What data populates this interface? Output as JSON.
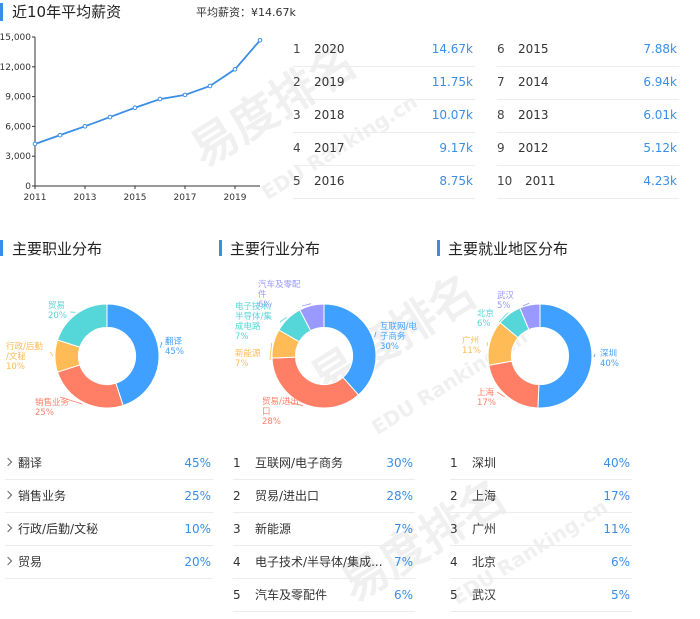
{
  "header": {
    "title": "近10年平均薪资",
    "avg_label": "平均薪资：¥14.67k"
  },
  "salary_ranks": [
    {
      "rank": "1",
      "year": "2020",
      "salary": "14.67k"
    },
    {
      "rank": "2",
      "year": "2019",
      "salary": "11.75k"
    },
    {
      "rank": "3",
      "year": "2018",
      "salary": "10.07k"
    },
    {
      "rank": "4",
      "year": "2017",
      "salary": "9.17k"
    },
    {
      "rank": "5",
      "year": "2016",
      "salary": "8.75k"
    },
    {
      "rank": "6",
      "year": "2015",
      "salary": "7.88k"
    },
    {
      "rank": "7",
      "year": "2014",
      "salary": "6.94k"
    },
    {
      "rank": "8",
      "year": "2013",
      "salary": "6.01k"
    },
    {
      "rank": "9",
      "year": "2012",
      "salary": "5.12k"
    },
    {
      "rank": "10",
      "year": "2011",
      "salary": "4.23k"
    }
  ],
  "sections": {
    "occupation": "主要职业分布",
    "industry": "主要行业分布",
    "region": "主要就业地区分布"
  },
  "occupation_list": [
    {
      "label": "翻译",
      "percent": "45%"
    },
    {
      "label": "销售业务",
      "percent": "25%"
    },
    {
      "label": "行政/后勤/文秘",
      "percent": "10%"
    },
    {
      "label": "贸易",
      "percent": "20%"
    }
  ],
  "industry_list": [
    {
      "rank": "1",
      "label": "互联网/电子商务",
      "percent": "30%"
    },
    {
      "rank": "2",
      "label": "贸易/进出口",
      "percent": "28%"
    },
    {
      "rank": "3",
      "label": "新能源",
      "percent": "7%"
    },
    {
      "rank": "4",
      "label": "电子技术/半导体/集成...",
      "percent": "7%"
    },
    {
      "rank": "5",
      "label": "汽车及零配件",
      "percent": "6%"
    }
  ],
  "region_list": [
    {
      "rank": "1",
      "label": "深圳",
      "percent": "40%"
    },
    {
      "rank": "2",
      "label": "上海",
      "percent": "17%"
    },
    {
      "rank": "3",
      "label": "广州",
      "percent": "11%"
    },
    {
      "rank": "4",
      "label": "北京",
      "percent": "6%"
    },
    {
      "rank": "5",
      "label": "武汉",
      "percent": "5%"
    }
  ],
  "watermark": {
    "brand": "易度排名",
    "sub": "EDU Ranking.cn"
  },
  "chart_data": [
    {
      "type": "line",
      "title": "近10年平均薪资",
      "x": [
        2011,
        2012,
        2013,
        2014,
        2015,
        2016,
        2017,
        2018,
        2019,
        2020
      ],
      "series": [
        {
          "values": [
            4230,
            5120,
            6010,
            6940,
            7880,
            8750,
            9170,
            10070,
            11750,
            14670
          ]
        }
      ],
      "xticks": [
        "2011",
        "2013",
        "2015",
        "2017",
        "2019"
      ],
      "yticks": [
        "0",
        "3,000",
        "6,000",
        "9,000",
        "12,000",
        "15,000"
      ],
      "ylim": [
        0,
        15000
      ],
      "xlim": [
        2011,
        2020
      ],
      "grid": false,
      "color": "#3a8ee6"
    },
    {
      "type": "pie",
      "title": "主要职业分布",
      "hole": 0.55,
      "slices": [
        {
          "label": "翻译",
          "value": 45,
          "text": "45%",
          "color": "#3fa0ff",
          "label_lines": [
            "翻译"
          ]
        },
        {
          "label": "销售业务",
          "value": 25,
          "text": "25%",
          "color": "#ff7f66",
          "label_lines": [
            "销售业务"
          ]
        },
        {
          "label": "行政/后勤/文秘",
          "value": 10,
          "text": "10%",
          "color": "#ffbb55",
          "label_lines": [
            "行政/后勤",
            "/文秘"
          ]
        },
        {
          "label": "贸易",
          "value": 20,
          "text": "20%",
          "color": "#55d6d8",
          "label_lines": [
            "贸易"
          ]
        }
      ]
    },
    {
      "type": "pie",
      "title": "主要行业分布",
      "hole": 0.55,
      "slices": [
        {
          "label": "互联网/电子商务",
          "value": 30,
          "text": "30%",
          "color": "#3fa0ff",
          "label_lines": [
            "互联网/电",
            "子商务"
          ]
        },
        {
          "label": "贸易/进出口",
          "value": 28,
          "text": "28%",
          "color": "#ff7f66",
          "label_lines": [
            "贸易/进出",
            "口"
          ]
        },
        {
          "label": "新能源",
          "value": 7,
          "text": "7%",
          "color": "#ffbb55",
          "label_lines": [
            "新能源"
          ]
        },
        {
          "label": "电子技术/半导体/集成电路",
          "value": 7,
          "text": "7%",
          "color": "#55d6d8",
          "label_lines": [
            "电子技术/",
            "半导体/集",
            "成电路"
          ]
        },
        {
          "label": "汽车及零配件",
          "value": 6,
          "text": "6%",
          "color": "#9999ff",
          "label_lines": [
            "汽车及零配",
            "件"
          ]
        }
      ]
    },
    {
      "type": "pie",
      "title": "主要就业地区分布",
      "hole": 0.55,
      "slices": [
        {
          "label": "深圳",
          "value": 40,
          "text": "40%",
          "color": "#3fa0ff",
          "label_lines": [
            "深圳"
          ]
        },
        {
          "label": "上海",
          "value": 17,
          "text": "17%",
          "color": "#ff7f66",
          "label_lines": [
            "上海"
          ]
        },
        {
          "label": "广州",
          "value": 11,
          "text": "11%",
          "color": "#ffbb55",
          "label_lines": [
            "广州"
          ]
        },
        {
          "label": "北京",
          "value": 6,
          "text": "6%",
          "color": "#55d6d8",
          "label_lines": [
            "北京"
          ]
        },
        {
          "label": "武汉",
          "value": 5,
          "text": "5%",
          "color": "#9999ff",
          "label_lines": [
            "武汉"
          ]
        }
      ]
    }
  ]
}
